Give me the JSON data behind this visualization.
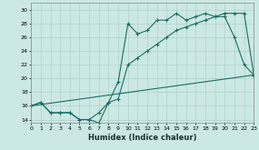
{
  "xlabel": "Humidex (Indice chaleur)",
  "bg_color": "#cce8e4",
  "grid_color": "#b0d0cc",
  "line_color": "#1a6e64",
  "xlim": [
    0,
    23
  ],
  "ylim": [
    13.5,
    31
  ],
  "xticks": [
    0,
    1,
    2,
    3,
    4,
    5,
    6,
    7,
    8,
    9,
    10,
    11,
    12,
    13,
    14,
    15,
    16,
    17,
    18,
    19,
    20,
    21,
    22,
    23
  ],
  "yticks": [
    14,
    16,
    18,
    20,
    22,
    24,
    26,
    28,
    30
  ],
  "line1_x": [
    0,
    1,
    2,
    3,
    4,
    5,
    6,
    7,
    8,
    9,
    10,
    11,
    12,
    13,
    14,
    15,
    16,
    17,
    18,
    19,
    20,
    21,
    22,
    23
  ],
  "line1_y": [
    16.0,
    16.5,
    15.0,
    15.0,
    15.0,
    14.0,
    14.0,
    13.5,
    16.5,
    19.5,
    28.0,
    26.5,
    27.0,
    28.5,
    28.5,
    29.5,
    28.5,
    29.0,
    29.5,
    29.0,
    29.0,
    26.0,
    22.0,
    20.5
  ],
  "line2_x": [
    0,
    1,
    2,
    3,
    4,
    5,
    6,
    7,
    8,
    9,
    10,
    11,
    12,
    13,
    14,
    15,
    16,
    17,
    18,
    19,
    20,
    21,
    22,
    23
  ],
  "line2_y": [
    16.0,
    16.5,
    15.0,
    15.0,
    15.0,
    14.0,
    14.0,
    15.0,
    16.5,
    17.0,
    22.0,
    23.0,
    24.0,
    25.0,
    26.0,
    27.0,
    27.5,
    28.0,
    28.5,
    29.0,
    29.5,
    29.5,
    29.5,
    20.5
  ],
  "line3_x": [
    0,
    23
  ],
  "line3_y": [
    16.0,
    20.5
  ]
}
